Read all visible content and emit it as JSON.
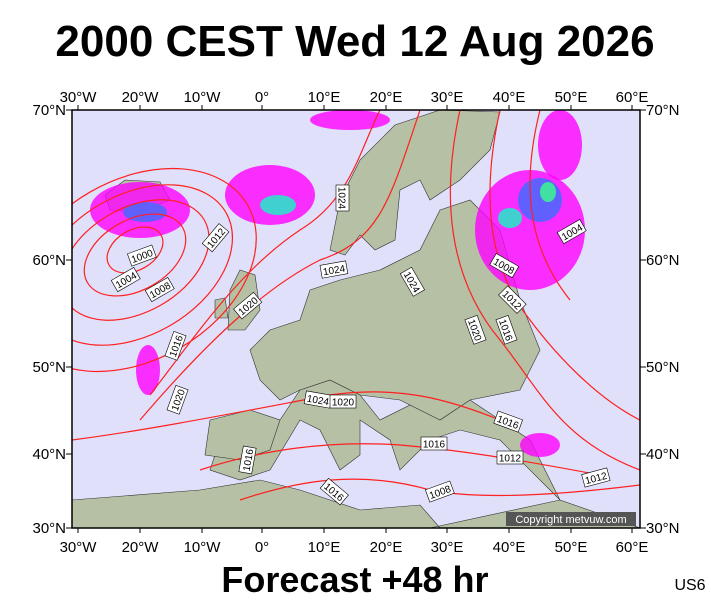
{
  "header": {
    "title": "2000 CEST Wed 12 Aug 2026"
  },
  "map": {
    "longitudes": [
      "30°W",
      "20°W",
      "10°W",
      "0°",
      "10°E",
      "20°E",
      "30°E",
      "40°E",
      "50°E",
      "60°E"
    ],
    "latitudes": [
      "70°N",
      "60°N",
      "50°N",
      "40°N",
      "30°N"
    ],
    "isobar_labels": [
      1012,
      1000,
      1004,
      1008,
      1020,
      1016,
      1020,
      1024,
      1024,
      1024,
      1004,
      1008,
      1012,
      1016,
      1020,
      1024,
      1020,
      1016,
      1016,
      1012,
      1008,
      1016,
      1016,
      1012
    ],
    "copyright": "Copyright metvuw.com"
  },
  "footer": {
    "forecast": "Forecast +48 hr",
    "code": "US6"
  }
}
